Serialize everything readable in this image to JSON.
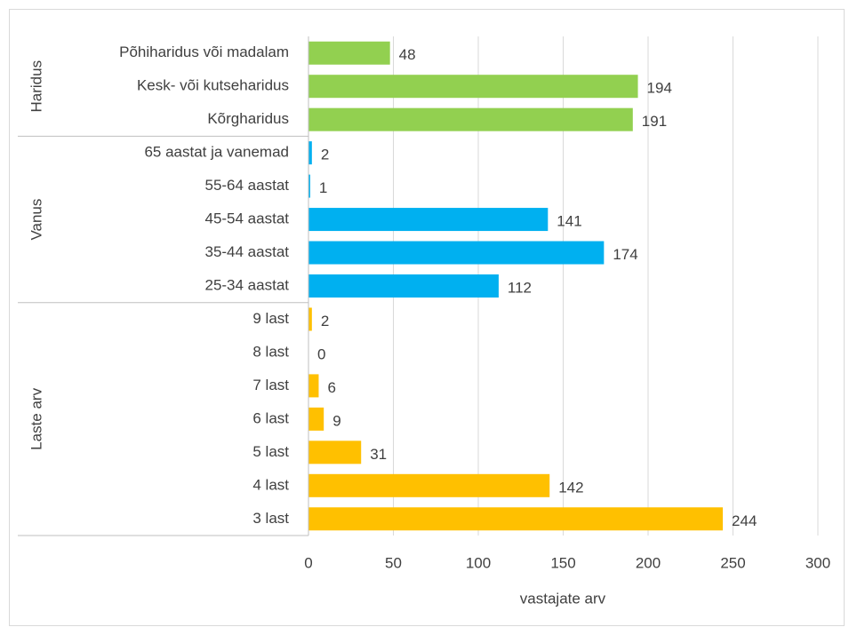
{
  "chart_data": {
    "type": "bar",
    "orientation": "horizontal",
    "groups": [
      {
        "name": "Haridus",
        "color": "#92d050",
        "categories": [
          "Põhiharidus või madalam",
          "Kesk- või kutseharidus",
          "Kõrgharidus"
        ],
        "values": [
          48,
          194,
          191
        ]
      },
      {
        "name": "Vanus",
        "color": "#00b0f0",
        "categories": [
          "65 aastat ja vanemad",
          "55-64 aastat",
          "45-54 aastat",
          "35-44 aastat",
          "25-34 aastat"
        ],
        "values": [
          2,
          1,
          141,
          174,
          112
        ]
      },
      {
        "name": "Laste arv",
        "color": "#ffc000",
        "categories": [
          "9 last",
          "8 last",
          "7 last",
          "6 last",
          "5 last",
          "4 last",
          "3 last"
        ],
        "values": [
          2,
          0,
          6,
          9,
          31,
          142,
          244
        ]
      }
    ],
    "xlabel": "vastajate arv",
    "xlim": [
      0,
      300
    ],
    "xticks": [
      0,
      50,
      100,
      150,
      200,
      250,
      300
    ],
    "grid": true,
    "data_labels": true
  }
}
